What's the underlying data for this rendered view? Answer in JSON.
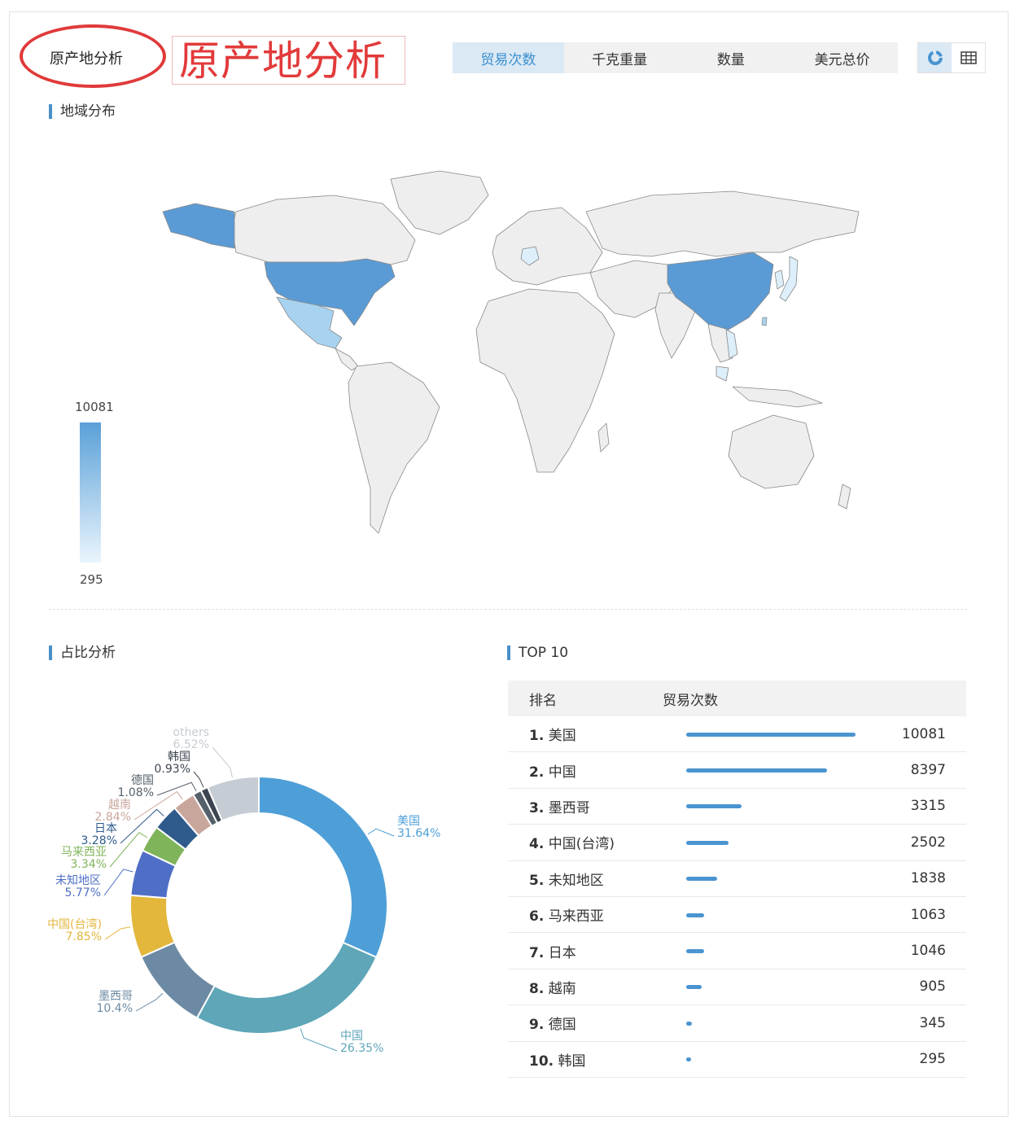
{
  "header": {
    "small_title": "原产地分析",
    "big_title": "原产地分析",
    "tabs": [
      "贸易次数",
      "千克重量",
      "数量",
      "美元总价"
    ],
    "active_tab": 0
  },
  "map_section": {
    "title": "地域分布",
    "legend_max": "10081",
    "legend_min": "295",
    "highlight_colors": {
      "high": "#5b9bd5",
      "mid": "#a8d3f0",
      "low": "#dceffb",
      "none": "#eeeeee"
    }
  },
  "pie_section": {
    "title": "占比分析",
    "slices": [
      {
        "name": "美国",
        "pct": "31.64%",
        "value": 31.64,
        "color": "#4e9fd8"
      },
      {
        "name": "中国",
        "pct": "26.35%",
        "value": 26.35,
        "color": "#5ea6b8"
      },
      {
        "name": "墨西哥",
        "pct": "10.4%",
        "value": 10.4,
        "color": "#6c8aa3"
      },
      {
        "name": "中国(台湾)",
        "pct": "7.85%",
        "value": 7.85,
        "color": "#e3b63c"
      },
      {
        "name": "未知地区",
        "pct": "5.77%",
        "value": 5.77,
        "color": "#4f6fc6"
      },
      {
        "name": "马来西亚",
        "pct": "3.34%",
        "value": 3.34,
        "color": "#7fb45a"
      },
      {
        "name": "日本",
        "pct": "3.28%",
        "value": 3.28,
        "color": "#2f5a8c"
      },
      {
        "name": "越南",
        "pct": "2.84%",
        "value": 2.84,
        "color": "#c9a69c"
      },
      {
        "name": "德国",
        "pct": "1.08%",
        "value": 1.08,
        "color": "#55606b"
      },
      {
        "name": "韩国",
        "pct": "0.93%",
        "value": 0.93,
        "color": "#3d4550"
      },
      {
        "name": "others",
        "pct": "6.52%",
        "value": 6.52,
        "color": "#c6ccd3"
      }
    ]
  },
  "top10_section": {
    "title": "TOP 10",
    "col_rank": "排名",
    "col_value": "贸易次数",
    "rows": [
      {
        "rank": "1.",
        "name": "美国",
        "value": "10081"
      },
      {
        "rank": "2.",
        "name": "中国",
        "value": "8397"
      },
      {
        "rank": "3.",
        "name": "墨西哥",
        "value": "3315"
      },
      {
        "rank": "4.",
        "name": "中国(台湾)",
        "value": "2502"
      },
      {
        "rank": "5.",
        "name": "未知地区",
        "value": "1838"
      },
      {
        "rank": "6.",
        "name": "马来西亚",
        "value": "1063"
      },
      {
        "rank": "7.",
        "name": "日本",
        "value": "1046"
      },
      {
        "rank": "8.",
        "name": "越南",
        "value": "905"
      },
      {
        "rank": "9.",
        "name": "德国",
        "value": "345"
      },
      {
        "rank": "10.",
        "name": "韩国",
        "value": "295"
      }
    ]
  },
  "chart_data": {
    "type": "pie",
    "title": "占比分析",
    "categories": [
      "美国",
      "中国",
      "墨西哥",
      "中国(台湾)",
      "未知地区",
      "马来西亚",
      "日本",
      "越南",
      "德国",
      "韩国",
      "others"
    ],
    "values": [
      31.64,
      26.35,
      10.4,
      7.85,
      5.77,
      3.34,
      3.28,
      2.84,
      1.08,
      0.93,
      6.52
    ]
  },
  "bar_data": {
    "type": "bar",
    "categories": [
      "美国",
      "中国",
      "墨西哥",
      "中国(台湾)",
      "未知地区",
      "马来西亚",
      "日本",
      "越南",
      "德国",
      "韩国"
    ],
    "values": [
      10081,
      8397,
      3315,
      2502,
      1838,
      1063,
      1046,
      905,
      345,
      295
    ]
  }
}
